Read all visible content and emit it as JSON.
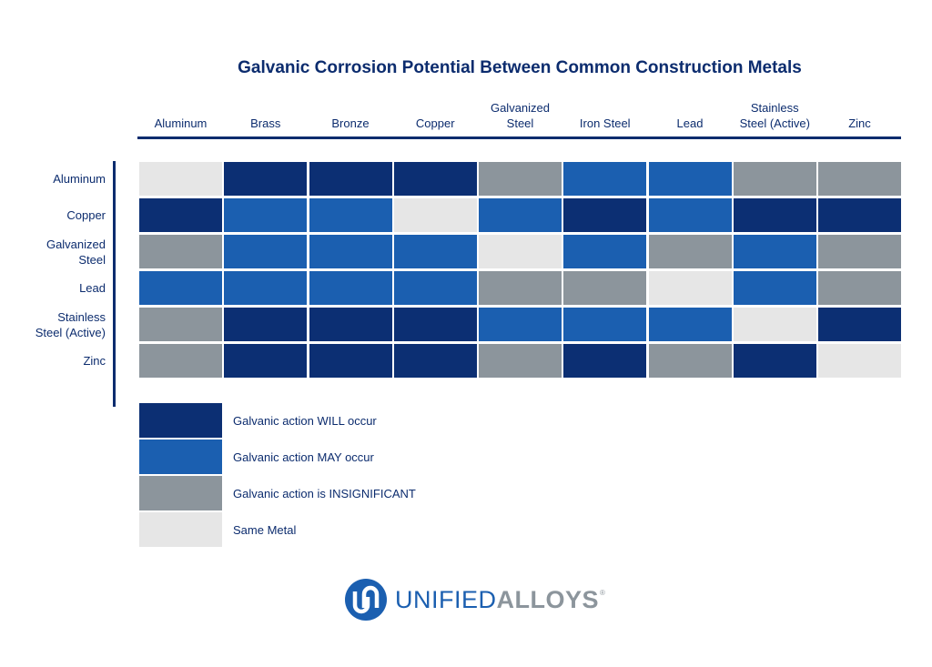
{
  "chart_data": {
    "type": "heatmap",
    "title": "Galvanic Corrosion Potential Between Common Construction Metals",
    "columns": [
      "Aluminum",
      "Brass",
      "Bronze",
      "Copper",
      "Galvanized\nSteel",
      "Iron Steel",
      "Lead",
      "Stainless\nSteel (Active)",
      "Zinc"
    ],
    "rows": [
      "Aluminum",
      "Copper",
      "Galvanized\nSteel",
      "Lead",
      "Stainless\nSteel (Active)",
      "Zinc"
    ],
    "values": [
      [
        "same",
        "will",
        "will",
        "will",
        "insignificant",
        "may",
        "may",
        "insignificant",
        "insignificant"
      ],
      [
        "will",
        "may",
        "may",
        "same",
        "may",
        "will",
        "may",
        "will",
        "will"
      ],
      [
        "insignificant",
        "may",
        "may",
        "may",
        "same",
        "may",
        "insignificant",
        "may",
        "insignificant"
      ],
      [
        "may",
        "may",
        "may",
        "may",
        "insignificant",
        "insignificant",
        "same",
        "may",
        "insignificant"
      ],
      [
        "insignificant",
        "will",
        "will",
        "will",
        "may",
        "may",
        "may",
        "same",
        "will"
      ],
      [
        "insignificant",
        "will",
        "will",
        "will",
        "insignificant",
        "will",
        "insignificant",
        "will",
        "same"
      ]
    ],
    "legend": [
      {
        "key": "will",
        "label": "Galvanic action WILL occur",
        "color": "#0c2f73"
      },
      {
        "key": "may",
        "label": "Galvanic action MAY occur",
        "color": "#1b5fb0"
      },
      {
        "key": "insignificant",
        "label": "Galvanic action is INSIGNIFICANT",
        "color": "#8c959c"
      },
      {
        "key": "same",
        "label": "Same Metal",
        "color": "#e6e6e6"
      }
    ]
  },
  "logo": {
    "part1": "UNIFIED",
    "part2": "ALLOYS",
    "registered": "®",
    "icon": "unified-alloys-logo-icon"
  },
  "colors": {
    "text": "#0c2c6e",
    "will": "#0c2f73",
    "may": "#1b5fb0",
    "insignificant": "#8c959c",
    "same": "#e6e6e6"
  }
}
